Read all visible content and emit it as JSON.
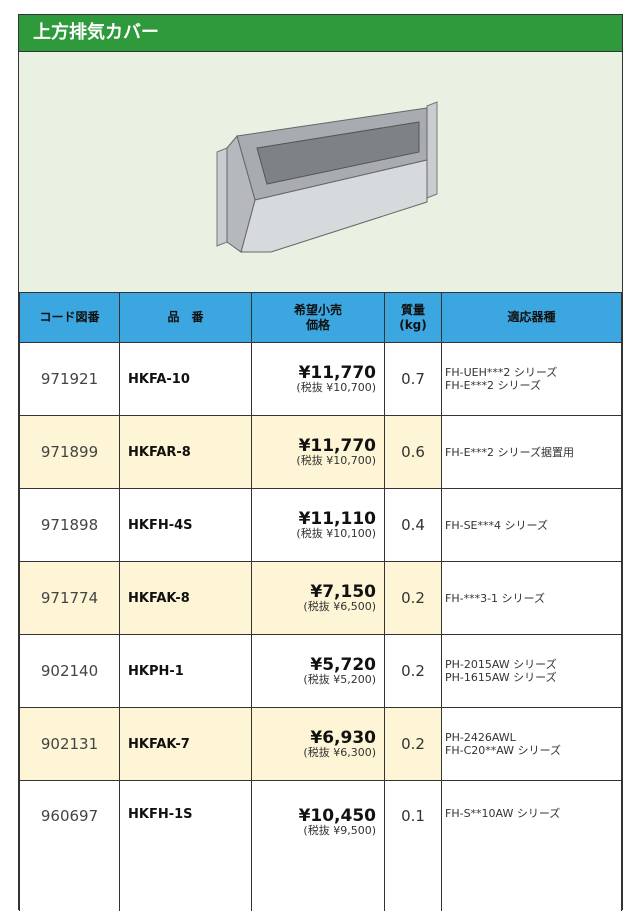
{
  "header": {
    "title": "上方排気カバー"
  },
  "table": {
    "columns": [
      "コード図番",
      "品　番",
      "希望小売\n価格",
      "質量\n(kg)",
      "適応器種"
    ],
    "rows": [
      {
        "code": "971921",
        "part": "HKFA-10",
        "price": "¥11,770",
        "tax": "(税抜 ¥10,700)",
        "weight": "0.7",
        "models": "FH-UEH***2 シリーズ\nFH-E***2 シリーズ"
      },
      {
        "code": "971899",
        "part": "HKFAR-8",
        "price": "¥11,770",
        "tax": "(税抜 ¥10,700)",
        "weight": "0.6",
        "models": "FH-E***2 シリーズ据置用"
      },
      {
        "code": "971898",
        "part": "HKFH-4S",
        "price": "¥11,110",
        "tax": "(税抜 ¥10,100)",
        "weight": "0.4",
        "models": "FH-SE***4 シリーズ"
      },
      {
        "code": "971774",
        "part": "HKFAK-8",
        "price": "¥7,150",
        "tax": "(税抜 ¥6,500)",
        "weight": "0.2",
        "models": "FH-***3-1 シリーズ"
      },
      {
        "code": "902140",
        "part": "HKPH-1",
        "price": "¥5,720",
        "tax": "(税抜 ¥5,200)",
        "weight": "0.2",
        "models": "PH-2015AW シリーズ\nPH-1615AW シリーズ"
      },
      {
        "code": "902131",
        "part": "HKFAK-7",
        "price": "¥6,930",
        "tax": "(税抜 ¥6,300)",
        "weight": "0.2",
        "models": "PH-2426AWL\nFH-C20**AW シリーズ"
      },
      {
        "code": "960697",
        "part": "HKFH-1S",
        "price": "¥10,450",
        "tax": "(税抜 ¥9,500)",
        "weight": "0.1",
        "models": "FH-S**10AW シリーズ"
      }
    ]
  }
}
